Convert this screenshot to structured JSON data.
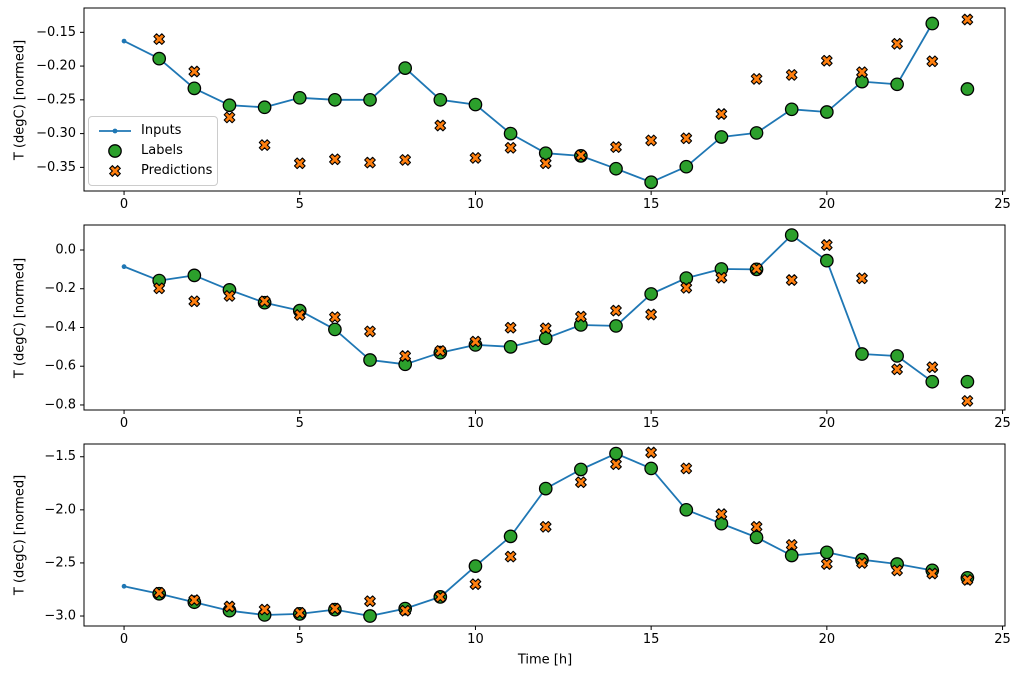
{
  "figure": {
    "background": "#ffffff"
  },
  "colors": {
    "inputs": "#1f77b4",
    "labels": "#2ca02c",
    "predictions": "#ff7f0e",
    "edge": "#000000",
    "legend_border": "#cccccc"
  },
  "legend": {
    "items": [
      {
        "label": "Inputs",
        "marker": "line-dot"
      },
      {
        "label": "Labels",
        "marker": "circle"
      },
      {
        "label": "Predictions",
        "marker": "x"
      }
    ]
  },
  "chart_data": [
    {
      "type": "line",
      "title": "",
      "ylabel": "T (degC) [normed]",
      "xlabel": "",
      "xlim": [
        -1.14,
        25.07
      ],
      "ylim": [
        -0.385,
        -0.114
      ],
      "grid": false,
      "xticks": [
        {
          "value": 0,
          "label": "0"
        },
        {
          "value": 5,
          "label": "5"
        },
        {
          "value": 10,
          "label": "10"
        },
        {
          "value": 15,
          "label": "15"
        },
        {
          "value": 20,
          "label": "20"
        },
        {
          "value": 25,
          "label": "25"
        }
      ],
      "yticks": [
        {
          "value": -0.15,
          "label": "−0.15"
        },
        {
          "value": -0.2,
          "label": "−0.20"
        },
        {
          "value": -0.25,
          "label": "−0.25"
        },
        {
          "value": -0.3,
          "label": "−0.30"
        },
        {
          "value": -0.35,
          "label": "−0.35"
        }
      ],
      "series": [
        {
          "name": "Inputs",
          "type": "line-dot",
          "color": "#1f77b4",
          "x": [
            0,
            1,
            2,
            3,
            4,
            5,
            6,
            7,
            8,
            9,
            10,
            11,
            12,
            13,
            14,
            15,
            16,
            17,
            18,
            19,
            20,
            21,
            22,
            23
          ],
          "y": [
            -0.163,
            -0.189,
            -0.233,
            -0.258,
            -0.261,
            -0.247,
            -0.25,
            -0.25,
            -0.203,
            -0.25,
            -0.257,
            -0.3,
            -0.329,
            -0.333,
            -0.352,
            -0.372,
            -0.349,
            -0.305,
            -0.299,
            -0.264,
            -0.268,
            -0.223,
            -0.227,
            -0.137
          ]
        },
        {
          "name": "Labels",
          "type": "scatter-circle",
          "color": "#2ca02c",
          "edge": "#000000",
          "x": [
            1,
            2,
            3,
            4,
            5,
            6,
            7,
            8,
            9,
            10,
            11,
            12,
            13,
            14,
            15,
            16,
            17,
            18,
            19,
            20,
            21,
            22,
            23,
            24
          ],
          "y": [
            -0.189,
            -0.233,
            -0.258,
            -0.261,
            -0.247,
            -0.25,
            -0.25,
            -0.203,
            -0.25,
            -0.257,
            -0.3,
            -0.329,
            -0.333,
            -0.352,
            -0.372,
            -0.349,
            -0.305,
            -0.299,
            -0.264,
            -0.268,
            -0.223,
            -0.227,
            -0.137,
            -0.234
          ]
        },
        {
          "name": "Predictions",
          "type": "scatter-x",
          "color": "#ff7f0e",
          "edge": "#000000",
          "x": [
            1,
            2,
            3,
            4,
            5,
            6,
            7,
            8,
            9,
            10,
            11,
            12,
            13,
            14,
            15,
            16,
            17,
            18,
            19,
            20,
            21,
            22,
            23,
            24
          ],
          "y": [
            -0.16,
            -0.208,
            -0.276,
            -0.317,
            -0.344,
            -0.338,
            -0.343,
            -0.339,
            -0.288,
            -0.336,
            -0.321,
            -0.344,
            -0.332,
            -0.32,
            -0.31,
            -0.307,
            -0.271,
            -0.219,
            -0.213,
            -0.192,
            -0.209,
            -0.167,
            -0.193,
            -0.131
          ]
        }
      ]
    },
    {
      "type": "line",
      "title": "",
      "ylabel": "T (degC) [normed]",
      "xlabel": "",
      "xlim": [
        -1.14,
        25.07
      ],
      "ylim": [
        -0.826,
        0.129
      ],
      "grid": false,
      "xticks": [
        {
          "value": 0,
          "label": "0"
        },
        {
          "value": 5,
          "label": "5"
        },
        {
          "value": 10,
          "label": "10"
        },
        {
          "value": 15,
          "label": "15"
        },
        {
          "value": 20,
          "label": "20"
        },
        {
          "value": 25,
          "label": "25"
        }
      ],
      "yticks": [
        {
          "value": 0.0,
          "label": "0.0"
        },
        {
          "value": -0.2,
          "label": "−0.2"
        },
        {
          "value": -0.4,
          "label": "−0.4"
        },
        {
          "value": -0.6,
          "label": "−0.6"
        },
        {
          "value": -0.8,
          "label": "−0.8"
        }
      ],
      "series": [
        {
          "name": "Inputs",
          "type": "line-dot",
          "color": "#1f77b4",
          "x": [
            0,
            1,
            2,
            3,
            4,
            5,
            6,
            7,
            8,
            9,
            10,
            11,
            12,
            13,
            14,
            15,
            16,
            17,
            18,
            19,
            20,
            21,
            22,
            23
          ],
          "y": [
            -0.086,
            -0.158,
            -0.131,
            -0.206,
            -0.272,
            -0.313,
            -0.41,
            -0.568,
            -0.59,
            -0.53,
            -0.49,
            -0.5,
            -0.456,
            -0.387,
            -0.392,
            -0.227,
            -0.145,
            -0.098,
            -0.1,
            0.077,
            -0.055,
            -0.537,
            -0.547,
            -0.68
          ]
        },
        {
          "name": "Labels",
          "type": "scatter-circle",
          "color": "#2ca02c",
          "edge": "#000000",
          "x": [
            1,
            2,
            3,
            4,
            5,
            6,
            7,
            8,
            9,
            10,
            11,
            12,
            13,
            14,
            15,
            16,
            17,
            18,
            19,
            20,
            21,
            22,
            23,
            24
          ],
          "y": [
            -0.158,
            -0.131,
            -0.206,
            -0.272,
            -0.313,
            -0.41,
            -0.568,
            -0.59,
            -0.53,
            -0.49,
            -0.5,
            -0.456,
            -0.387,
            -0.392,
            -0.227,
            -0.145,
            -0.098,
            -0.1,
            0.077,
            -0.055,
            -0.537,
            -0.547,
            -0.68,
            -0.68
          ]
        },
        {
          "name": "Predictions",
          "type": "scatter-x",
          "color": "#ff7f0e",
          "edge": "#000000",
          "x": [
            1,
            2,
            3,
            4,
            5,
            6,
            7,
            8,
            9,
            10,
            11,
            12,
            13,
            14,
            15,
            16,
            17,
            18,
            19,
            20,
            21,
            22,
            23,
            24
          ],
          "y": [
            -0.198,
            -0.265,
            -0.237,
            -0.265,
            -0.335,
            -0.347,
            -0.42,
            -0.547,
            -0.521,
            -0.473,
            -0.401,
            -0.404,
            -0.344,
            -0.313,
            -0.333,
            -0.195,
            -0.143,
            -0.096,
            -0.155,
            0.026,
            -0.146,
            -0.616,
            -0.605,
            -0.779
          ]
        }
      ]
    },
    {
      "type": "line",
      "title": "",
      "ylabel": "T (degC) [normed]",
      "xlabel": "Time [h]",
      "xlim": [
        -1.14,
        25.07
      ],
      "ylim": [
        -3.094,
        -1.38
      ],
      "grid": false,
      "xticks": [
        {
          "value": 0,
          "label": "0"
        },
        {
          "value": 5,
          "label": "5"
        },
        {
          "value": 10,
          "label": "10"
        },
        {
          "value": 15,
          "label": "15"
        },
        {
          "value": 20,
          "label": "20"
        },
        {
          "value": 25,
          "label": "25"
        }
      ],
      "yticks": [
        {
          "value": -1.5,
          "label": "−1.5"
        },
        {
          "value": -2.0,
          "label": "−2.0"
        },
        {
          "value": -2.5,
          "label": "−2.5"
        },
        {
          "value": -3.0,
          "label": "−3.0"
        }
      ],
      "series": [
        {
          "name": "Inputs",
          "type": "line-dot",
          "color": "#1f77b4",
          "x": [
            0,
            1,
            2,
            3,
            4,
            5,
            6,
            7,
            8,
            9,
            10,
            11,
            12,
            13,
            14,
            15,
            16,
            17,
            18,
            19,
            20,
            21,
            22,
            23
          ],
          "y": [
            -2.72,
            -2.79,
            -2.87,
            -2.95,
            -2.99,
            -2.98,
            -2.94,
            -3.0,
            -2.93,
            -2.82,
            -2.53,
            -2.25,
            -1.8,
            -1.62,
            -1.47,
            -1.61,
            -2.0,
            -2.13,
            -2.26,
            -2.43,
            -2.4,
            -2.47,
            -2.51,
            -2.57
          ]
        },
        {
          "name": "Labels",
          "type": "scatter-circle",
          "color": "#2ca02c",
          "edge": "#000000",
          "x": [
            1,
            2,
            3,
            4,
            5,
            6,
            7,
            8,
            9,
            10,
            11,
            12,
            13,
            14,
            15,
            16,
            17,
            18,
            19,
            20,
            21,
            22,
            23,
            24
          ],
          "y": [
            -2.79,
            -2.87,
            -2.95,
            -2.99,
            -2.98,
            -2.94,
            -3.0,
            -2.93,
            -2.82,
            -2.53,
            -2.25,
            -1.8,
            -1.62,
            -1.47,
            -1.61,
            -2.0,
            -2.13,
            -2.26,
            -2.43,
            -2.4,
            -2.47,
            -2.51,
            -2.57,
            -2.64
          ]
        },
        {
          "name": "Predictions",
          "type": "scatter-x",
          "color": "#ff7f0e",
          "edge": "#000000",
          "x": [
            1,
            2,
            3,
            4,
            5,
            6,
            7,
            8,
            9,
            10,
            11,
            12,
            13,
            14,
            15,
            16,
            17,
            18,
            19,
            20,
            21,
            22,
            23,
            24
          ],
          "y": [
            -2.78,
            -2.85,
            -2.91,
            -2.94,
            -2.97,
            -2.93,
            -2.86,
            -2.95,
            -2.82,
            -2.7,
            -2.44,
            -2.16,
            -1.74,
            -1.57,
            -1.46,
            -1.61,
            -2.04,
            -2.16,
            -2.33,
            -2.51,
            -2.5,
            -2.57,
            -2.6,
            -2.66
          ]
        }
      ]
    }
  ]
}
